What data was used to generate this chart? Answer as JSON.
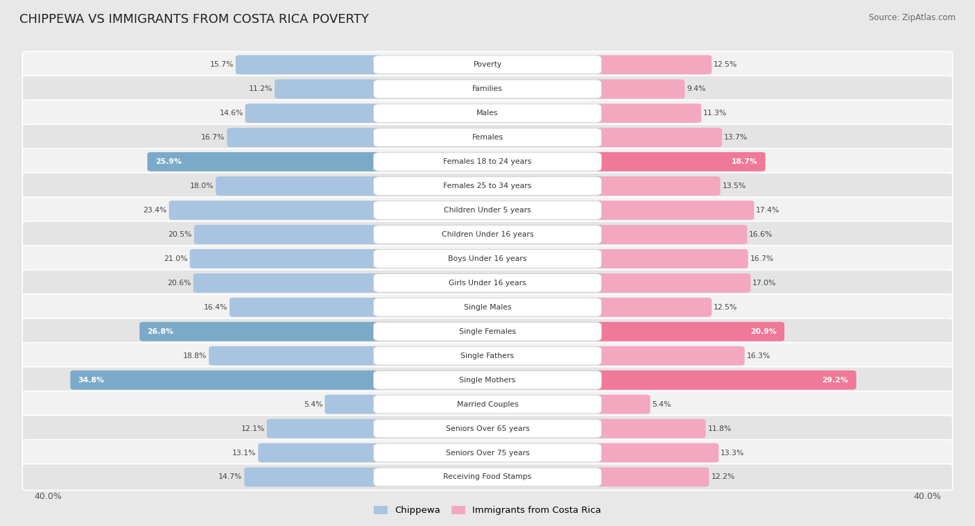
{
  "title": "CHIPPEWA VS IMMIGRANTS FROM COSTA RICA POVERTY",
  "source": "Source: ZipAtlas.com",
  "categories": [
    "Poverty",
    "Families",
    "Males",
    "Females",
    "Females 18 to 24 years",
    "Females 25 to 34 years",
    "Children Under 5 years",
    "Children Under 16 years",
    "Boys Under 16 years",
    "Girls Under 16 years",
    "Single Males",
    "Single Females",
    "Single Fathers",
    "Single Mothers",
    "Married Couples",
    "Seniors Over 65 years",
    "Seniors Over 75 years",
    "Receiving Food Stamps"
  ],
  "chippewa": [
    15.7,
    11.2,
    14.6,
    16.7,
    25.9,
    18.0,
    23.4,
    20.5,
    21.0,
    20.6,
    16.4,
    26.8,
    18.8,
    34.8,
    5.4,
    12.1,
    13.1,
    14.7
  ],
  "costarica": [
    12.5,
    9.4,
    11.3,
    13.7,
    18.7,
    13.5,
    17.4,
    16.6,
    16.7,
    17.0,
    12.5,
    20.9,
    16.3,
    29.2,
    5.4,
    11.8,
    13.3,
    12.2
  ],
  "color_chippewa": "#a8c4e0",
  "color_costarica": "#f4a8c0",
  "color_highlight_chippewa": "#7aaac8",
  "color_highlight_costarica": "#f07898",
  "axis_max": 40.0,
  "background_color": "#e8e8e8",
  "row_bg_even": "#f2f2f2",
  "row_bg_odd": "#e4e4e4",
  "highlight_rows": [
    4,
    11,
    13
  ]
}
